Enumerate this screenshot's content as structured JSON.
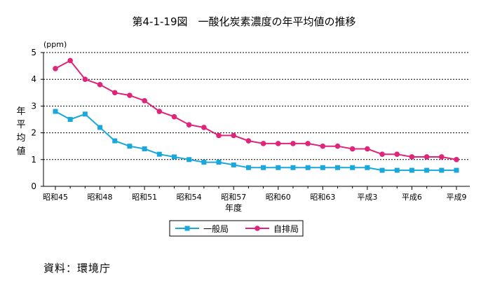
{
  "chart_data": {
    "type": "line",
    "title": "第4-1-19図　一酸化炭素濃度の年平均値の推移",
    "unit": "(ppm)",
    "ylabel": "年平均値",
    "xlabel": "年度",
    "ylim": [
      0,
      5
    ],
    "yticks": [
      0,
      1,
      2,
      3,
      4,
      5
    ],
    "grid": "horizontal dotted",
    "categories": [
      "昭和45",
      "昭和46",
      "昭和47",
      "昭和48",
      "昭和49",
      "昭和50",
      "昭和51",
      "昭和52",
      "昭和53",
      "昭和54",
      "昭和55",
      "昭和56",
      "昭和57",
      "昭和58",
      "昭和59",
      "昭和60",
      "昭和61",
      "昭和62",
      "昭和63",
      "平成元",
      "平成2",
      "平成3",
      "平成4",
      "平成5",
      "平成6",
      "平成7",
      "平成8",
      "平成9"
    ],
    "xtick_labels": [
      "昭和45",
      "昭和48",
      "昭和51",
      "昭和54",
      "昭和57",
      "昭和60",
      "昭和63",
      "平成3",
      "平成6",
      "平成9"
    ],
    "xtick_indices": [
      0,
      3,
      6,
      9,
      12,
      15,
      18,
      21,
      24,
      27
    ],
    "series": [
      {
        "name": "一般局",
        "color": "#1aa7dc",
        "marker": "square",
        "values": [
          2.8,
          2.5,
          2.7,
          2.2,
          1.7,
          1.5,
          1.4,
          1.2,
          1.1,
          1.0,
          0.9,
          0.9,
          0.8,
          0.7,
          0.7,
          0.7,
          0.7,
          0.7,
          0.7,
          0.7,
          0.7,
          0.7,
          0.6,
          0.6,
          0.6,
          0.6,
          0.6,
          0.6
        ]
      },
      {
        "name": "自排局",
        "color": "#e0247a",
        "marker": "circle",
        "values": [
          4.4,
          4.7,
          4.0,
          3.8,
          3.5,
          3.4,
          3.2,
          2.8,
          2.6,
          2.3,
          2.2,
          1.9,
          1.9,
          1.7,
          1.6,
          1.6,
          1.6,
          1.6,
          1.5,
          1.5,
          1.4,
          1.4,
          1.2,
          1.2,
          1.1,
          1.1,
          1.1,
          1.0
        ]
      }
    ],
    "legend": "bottom-center"
  },
  "source": "資料：環境庁"
}
